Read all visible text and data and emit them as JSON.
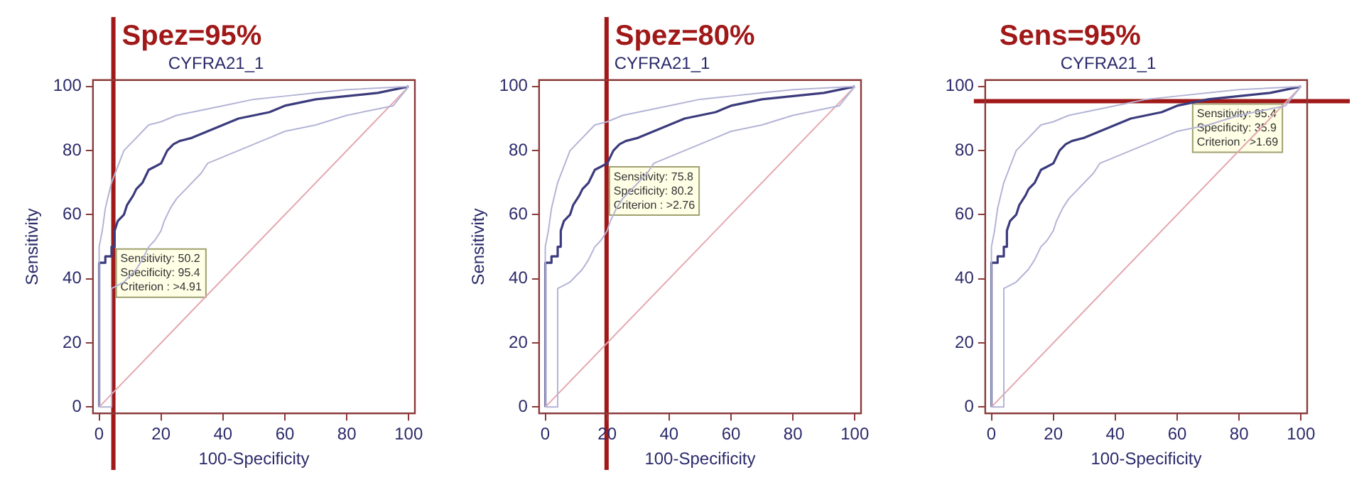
{
  "chart_data": [
    {
      "type": "line",
      "title": "CYFRA21_1",
      "xlabel": "100-Specificity",
      "ylabel": "Sensitivity",
      "xlim": [
        -2,
        102
      ],
      "ylim": [
        -2,
        102
      ],
      "xticks": [
        0,
        20,
        40,
        60,
        80,
        100
      ],
      "yticks": [
        0,
        20,
        40,
        60,
        80,
        100
      ],
      "series": [
        {
          "color": "#b4b4d6",
          "x": [
            0,
            0,
            1,
            2,
            3,
            4,
            6,
            8,
            10,
            12,
            14,
            16,
            20,
            25,
            30,
            40,
            50,
            60,
            70,
            80,
            100
          ],
          "values": [
            0,
            50,
            55,
            62,
            66,
            70,
            75,
            80,
            82,
            84,
            86,
            88,
            89,
            91,
            92,
            94,
            96,
            97,
            98,
            99,
            100
          ]
        },
        {
          "color": "#b4b4d6",
          "x": [
            0,
            4,
            4,
            8,
            10,
            12,
            14,
            16,
            18,
            20,
            21,
            23,
            25,
            28,
            30,
            33,
            35,
            40,
            45,
            50,
            55,
            60,
            70,
            80,
            90,
            95,
            100
          ],
          "values": [
            0,
            0,
            37,
            39,
            41,
            43,
            46,
            50,
            52,
            55,
            58,
            62,
            65,
            68,
            70,
            73,
            76,
            78,
            80,
            82,
            84,
            86,
            88,
            91,
            93,
            94,
            100
          ]
        },
        {
          "color": "#e4a8b0",
          "x": [
            0,
            100
          ],
          "values": [
            0,
            100
          ]
        },
        {
          "color": "#3b3b7d",
          "x": [
            0,
            0,
            2,
            2,
            4,
            4,
            5,
            5,
            6,
            8,
            9,
            11,
            12,
            14,
            15,
            16,
            18,
            20,
            21,
            22,
            24,
            26,
            30,
            35,
            40,
            45,
            50,
            55,
            60,
            65,
            70,
            80,
            90,
            95,
            100
          ],
          "values": [
            0,
            45,
            45,
            47,
            47,
            50,
            50,
            55,
            58,
            60,
            63,
            66,
            68,
            70,
            72,
            74,
            75,
            76,
            78,
            80,
            82,
            83,
            84,
            86,
            88,
            90,
            91,
            92,
            94,
            95,
            96,
            97,
            98,
            99,
            100
          ]
        }
      ],
      "ref_lines": [
        {
          "axis": "x",
          "value": 4.6,
          "color": "#a01818"
        }
      ],
      "annotations": [
        "Spez=95%",
        {
          "text": "Sensitivity: 50.2\nSpecificity: 95.4\nCriterion : >4.91",
          "x": 4.6,
          "y": 50.2
        }
      ]
    },
    {
      "type": "line",
      "title": "CYFRA21_1",
      "xlabel": "100-Specificity",
      "ylabel": "Sensitivity",
      "xlim": [
        -2,
        102
      ],
      "ylim": [
        -2,
        102
      ],
      "xticks": [
        0,
        20,
        40,
        60,
        80,
        100
      ],
      "yticks": [
        0,
        20,
        40,
        60,
        80,
        100
      ],
      "series": [
        {
          "color": "#b4b4d6",
          "x": [
            0,
            0,
            1,
            2,
            3,
            4,
            6,
            8,
            10,
            12,
            14,
            16,
            20,
            25,
            30,
            40,
            50,
            60,
            70,
            80,
            100
          ],
          "values": [
            0,
            50,
            55,
            62,
            66,
            70,
            75,
            80,
            82,
            84,
            86,
            88,
            89,
            91,
            92,
            94,
            96,
            97,
            98,
            99,
            100
          ]
        },
        {
          "color": "#b4b4d6",
          "x": [
            0,
            4,
            4,
            8,
            10,
            12,
            14,
            16,
            18,
            20,
            21,
            23,
            25,
            28,
            30,
            33,
            35,
            40,
            45,
            50,
            55,
            60,
            70,
            80,
            90,
            95,
            100
          ],
          "values": [
            0,
            0,
            37,
            39,
            41,
            43,
            46,
            50,
            52,
            55,
            58,
            62,
            65,
            68,
            70,
            73,
            76,
            78,
            80,
            82,
            84,
            86,
            88,
            91,
            93,
            94,
            100
          ]
        },
        {
          "color": "#e4a8b0",
          "x": [
            0,
            100
          ],
          "values": [
            0,
            100
          ]
        },
        {
          "color": "#3b3b7d",
          "x": [
            0,
            0,
            2,
            2,
            4,
            4,
            5,
            5,
            6,
            8,
            9,
            11,
            12,
            14,
            15,
            16,
            18,
            20,
            21,
            22,
            24,
            26,
            30,
            35,
            40,
            45,
            50,
            55,
            60,
            65,
            70,
            80,
            90,
            95,
            100
          ],
          "values": [
            0,
            45,
            45,
            47,
            47,
            50,
            50,
            55,
            58,
            60,
            63,
            66,
            68,
            70,
            72,
            74,
            75,
            76,
            78,
            80,
            82,
            83,
            84,
            86,
            88,
            90,
            91,
            92,
            94,
            95,
            96,
            97,
            98,
            99,
            100
          ]
        }
      ],
      "ref_lines": [
        {
          "axis": "x",
          "value": 19.8,
          "color": "#a01818"
        }
      ],
      "annotations": [
        "Spez=80%",
        {
          "text": "Sensitivity: 75.8\nSpecificity: 80.2\nCriterion : >2.76",
          "x": 19.8,
          "y": 75.8
        }
      ]
    },
    {
      "type": "line",
      "title": "CYFRA21_1",
      "xlabel": "100-Specificity",
      "xlim": [
        -2,
        102
      ],
      "ylim": [
        -2,
        102
      ],
      "xticks": [
        0,
        20,
        40,
        60,
        80,
        100
      ],
      "yticks": [
        0,
        20,
        40,
        60,
        80,
        100
      ],
      "series": [
        {
          "color": "#b4b4d6",
          "x": [
            0,
            0,
            1,
            2,
            3,
            4,
            6,
            8,
            10,
            12,
            14,
            16,
            20,
            25,
            30,
            40,
            50,
            60,
            70,
            80,
            100
          ],
          "values": [
            0,
            50,
            55,
            62,
            66,
            70,
            75,
            80,
            82,
            84,
            86,
            88,
            89,
            91,
            92,
            94,
            96,
            97,
            98,
            99,
            100
          ]
        },
        {
          "color": "#b4b4d6",
          "x": [
            0,
            4,
            4,
            8,
            10,
            12,
            14,
            16,
            18,
            20,
            21,
            23,
            25,
            28,
            30,
            33,
            35,
            40,
            45,
            50,
            55,
            60,
            70,
            80,
            90,
            95,
            100
          ],
          "values": [
            0,
            0,
            37,
            39,
            41,
            43,
            46,
            50,
            52,
            55,
            58,
            62,
            65,
            68,
            70,
            73,
            76,
            78,
            80,
            82,
            84,
            86,
            88,
            91,
            93,
            94,
            100
          ]
        },
        {
          "color": "#e4a8b0",
          "x": [
            0,
            100
          ],
          "values": [
            0,
            100
          ]
        },
        {
          "color": "#3b3b7d",
          "x": [
            0,
            0,
            2,
            2,
            4,
            4,
            5,
            5,
            6,
            8,
            9,
            11,
            12,
            14,
            15,
            16,
            18,
            20,
            21,
            22,
            24,
            26,
            30,
            35,
            40,
            45,
            50,
            55,
            60,
            65,
            70,
            80,
            90,
            95,
            100
          ],
          "values": [
            0,
            45,
            45,
            47,
            47,
            50,
            50,
            55,
            58,
            60,
            63,
            66,
            68,
            70,
            72,
            74,
            75,
            76,
            78,
            80,
            82,
            83,
            84,
            86,
            88,
            90,
            91,
            92,
            94,
            95,
            96,
            97,
            98,
            99,
            100
          ]
        }
      ],
      "ref_lines": [
        {
          "axis": "y",
          "value": 95.4,
          "color": "#a01818"
        }
      ],
      "annotations": [
        "Sens=95%",
        {
          "text": "Sensitivity: 95.4\nSpecificity: 35.9\nCriterion : >1.69",
          "x": 64.1,
          "y": 95.4
        }
      ]
    }
  ]
}
